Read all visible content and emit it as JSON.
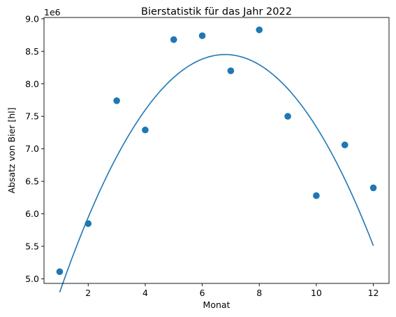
{
  "chart_data": {
    "type": "scatter",
    "title": "Bierstatistik für das Jahr 2022",
    "xlabel": "Monat",
    "ylabel": "Absatz von Bier [hl]",
    "y_offset_label": "1e6",
    "xlim": [
      0.45,
      12.55
    ],
    "ylim": [
      4.93,
      9.02
    ],
    "x_ticks": [
      2,
      4,
      6,
      8,
      10,
      12
    ],
    "x_tick_labels": [
      "2",
      "4",
      "6",
      "8",
      "10",
      "12"
    ],
    "y_ticks": [
      5.0,
      5.5,
      6.0,
      6.5,
      7.0,
      7.5,
      8.0,
      8.5,
      9.0
    ],
    "y_tick_labels": [
      "5.0",
      "5.5",
      "6.0",
      "6.5",
      "7.0",
      "7.5",
      "8.0",
      "8.5",
      "9.0"
    ],
    "grid": false,
    "colors": {
      "series": "#1f77b4",
      "axis": "#000000",
      "background": "#ffffff"
    },
    "series": [
      {
        "kind": "points",
        "x": [
          1,
          2,
          3,
          4,
          5,
          6,
          7,
          8,
          9,
          10,
          11,
          12
        ],
        "y": [
          5.11,
          5.85,
          7.74,
          7.29,
          8.68,
          8.74,
          8.2,
          8.83,
          7.5,
          6.28,
          7.06,
          6.4
        ]
      },
      {
        "kind": "fit-curve",
        "x_range": [
          1,
          12
        ],
        "vertex_x": 6.8,
        "vertex_y": 8.45,
        "curvature": -0.1087
      }
    ]
  }
}
